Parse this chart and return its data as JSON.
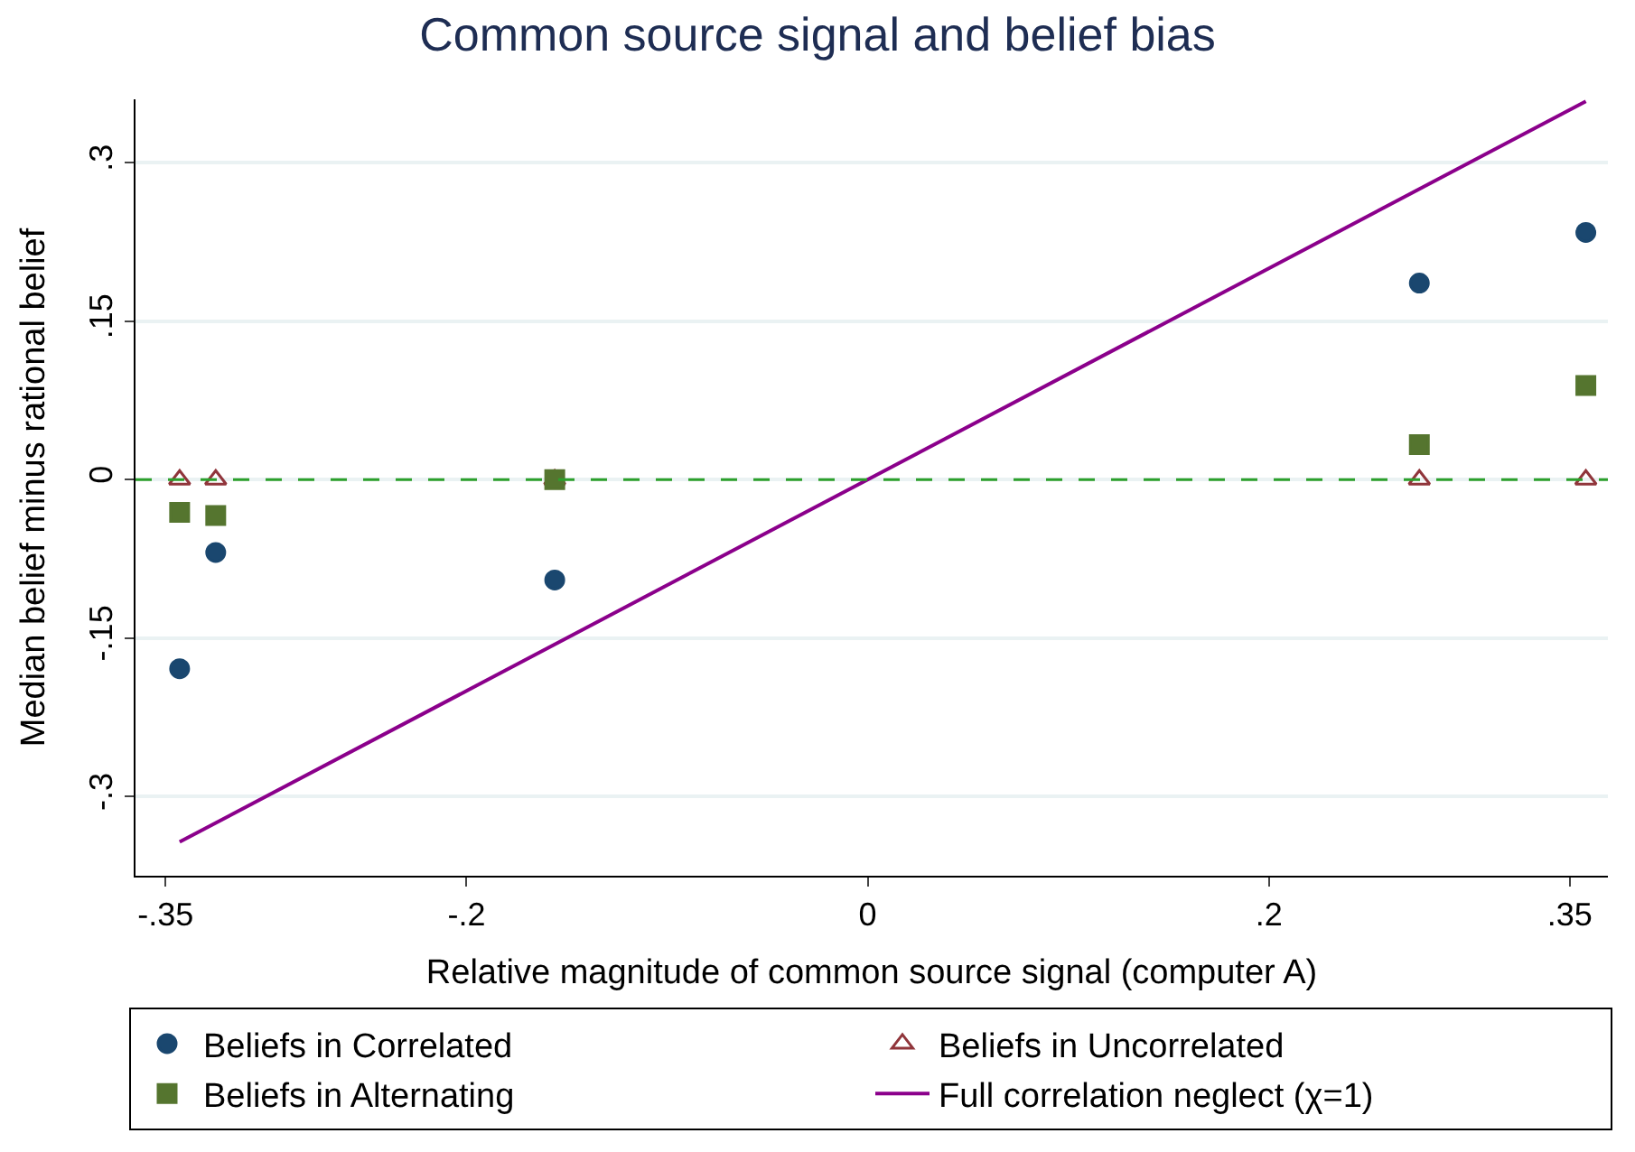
{
  "chart_data": {
    "type": "scatter",
    "title": "Common source signal and belief bias",
    "xlabel": "Relative magnitude of common source signal (computer A)",
    "ylabel": "Median belief minus rational belief",
    "x": [
      -0.343,
      -0.325,
      -0.156,
      0.275,
      0.358
    ],
    "series": [
      {
        "name": "Beliefs in Correlated",
        "color": "#1a476f",
        "marker": "circle",
        "values": [
          -0.179,
          -0.069,
          -0.095,
          0.186,
          0.234
        ]
      },
      {
        "name": "Beliefs in Uncorrelated",
        "color": "#90353b",
        "marker": "triangle",
        "values": [
          0,
          0,
          0,
          0,
          0
        ]
      },
      {
        "name": "Beliefs in Alternating",
        "color": "#55752f",
        "marker": "square",
        "values": [
          -0.031,
          -0.034,
          0,
          0.033,
          0.089
        ]
      },
      {
        "name": "Full correlation neglect (χ=1)",
        "type": "line",
        "color": "#8b008b",
        "marker": "none",
        "x": [
          -0.343,
          0.358
        ],
        "values": [
          -0.343,
          0.358
        ]
      }
    ],
    "xlim": [
      -0.365,
      0.369
    ],
    "ylim": [
      -0.375,
      0.36
    ],
    "xticks": [
      {
        "value": -0.35,
        "label": "-.35"
      },
      {
        "value": -0.2,
        "label": "-.2"
      },
      {
        "value": 0,
        "label": "0"
      },
      {
        "value": 0.2,
        "label": ".2"
      },
      {
        "value": 0.35,
        "label": ".35"
      }
    ],
    "yticks": [
      {
        "value": -0.3,
        "label": "-.3"
      },
      {
        "value": -0.15,
        "label": "-.15"
      },
      {
        "value": 0,
        "label": "0"
      },
      {
        "value": 0.15,
        "label": ".15"
      },
      {
        "value": 0.3,
        "label": ".3"
      }
    ],
    "ref_lines": [
      {
        "axis": "y",
        "value": 0,
        "label": null,
        "color": "#2ca02c",
        "line_style": "dashed"
      }
    ],
    "grid": "y",
    "legend": "bottom"
  }
}
